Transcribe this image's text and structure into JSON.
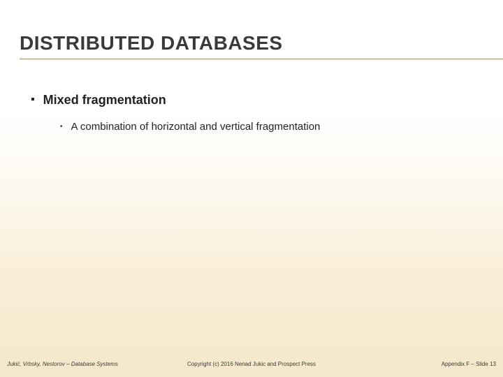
{
  "slide": {
    "title": "DISTRIBUTED DATABASES",
    "title_color": "#3a3a38",
    "title_fontsize": 28,
    "title_rule_color": "#9c8a6a",
    "background_gradient": [
      "#ffffff",
      "#ffffff",
      "#fdf8ee",
      "#f9efd8",
      "#f4e8cb"
    ],
    "bullets": {
      "level1": {
        "marker": "▪",
        "text": "Mixed fragmentation",
        "fontsize": 18,
        "fontweight": "700",
        "color": "#222222"
      },
      "level2": {
        "marker": "•",
        "text": "A combination of horizontal and vertical fragmentation",
        "fontsize": 15,
        "color": "#222222"
      }
    }
  },
  "footer": {
    "left": "Jukić, Vrbsky, Nestorov – Database Systems",
    "center": "Copyright (c) 2016 Nenad Jukic and Prospect Press",
    "right": "Appendix F – Slide 13",
    "fontsize": 8,
    "color": "#3a3a38"
  }
}
